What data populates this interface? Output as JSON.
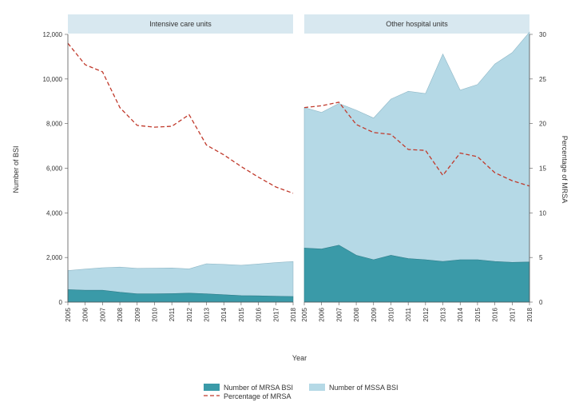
{
  "chart_data": {
    "type": "area",
    "panels": [
      {
        "title": "Intensive care units",
        "x": [
          "2005",
          "2006",
          "2007",
          "2008",
          "2009",
          "2010",
          "2011",
          "2012",
          "2013",
          "2014",
          "2015",
          "2016",
          "2017",
          "2018"
        ],
        "mrsa_bsi": [
          560,
          530,
          530,
          440,
          370,
          370,
          380,
          400,
          370,
          330,
          290,
          280,
          260,
          250
        ],
        "mssa_bsi": [
          850,
          950,
          1010,
          1130,
          1140,
          1150,
          1150,
          1090,
          1350,
          1360,
          1360,
          1430,
          1510,
          1570
        ],
        "pct_mrsa": [
          29.0,
          26.6,
          25.8,
          21.8,
          19.8,
          19.6,
          19.7,
          21.0,
          17.6,
          16.5,
          15.2,
          14.0,
          12.9,
          12.2
        ]
      },
      {
        "title": "Other hospital units",
        "x": [
          "2005",
          "2006",
          "2007",
          "2008",
          "2009",
          "2010",
          "2011",
          "2012",
          "2013",
          "2014",
          "2015",
          "2016",
          "2017",
          "2018"
        ],
        "mrsa_bsi": [
          2420,
          2380,
          2550,
          2100,
          1900,
          2100,
          1950,
          1900,
          1820,
          1900,
          1900,
          1820,
          1780,
          1800
        ],
        "mssa_bsi": [
          6300,
          6120,
          6350,
          6500,
          6350,
          7000,
          7500,
          7450,
          9300,
          7600,
          7850,
          8850,
          9400,
          10300
        ],
        "pct_mrsa": [
          21.8,
          22.0,
          22.4,
          19.9,
          19.0,
          18.8,
          17.1,
          17.0,
          14.2,
          16.7,
          16.3,
          14.5,
          13.6,
          13.0
        ]
      }
    ],
    "ylabel_left": "Number of BSI",
    "ylabel_right": "Percentage of MRSA",
    "xlabel": "Year",
    "ylim_left": [
      0,
      12000
    ],
    "ylim_right": [
      0,
      30
    ],
    "yticks_left": [
      "0",
      "2,000",
      "4,000",
      "6,000",
      "8,000",
      "10,000",
      "12,000"
    ],
    "yticks_left_values": [
      0,
      2000,
      4000,
      6000,
      8000,
      10000,
      12000
    ],
    "yticks_right": [
      "0",
      "5",
      "10",
      "15",
      "20",
      "25",
      "30"
    ],
    "yticks_right_values": [
      0,
      5,
      10,
      15,
      20,
      25,
      30
    ],
    "legend": {
      "mrsa_label": "Number of MRSA BSI",
      "mssa_label": "Number of MSSA BSI",
      "pct_label": "Percentage of MRSA"
    },
    "colors": {
      "mrsa": "#3a9aa8",
      "mssa": "#b5d9e6",
      "pct": "#c0392b",
      "header": "#d8e8f0",
      "axis": "#555555"
    }
  }
}
